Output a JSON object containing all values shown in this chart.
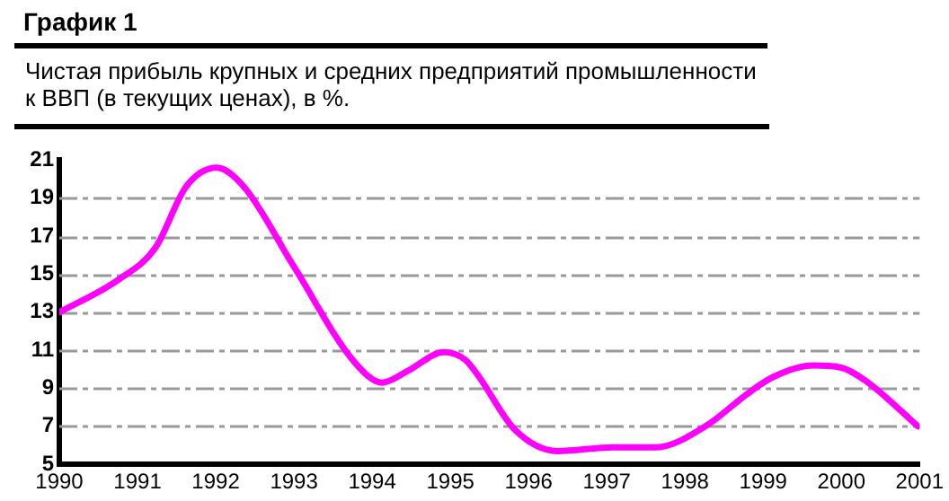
{
  "chart_data": {
    "type": "line",
    "title": "График 1",
    "subtitle": "Чистая прибыль крупных и средних предприятий промышленности к ВВП (в текущих ценах), в %.",
    "x": [
      1990,
      1990.75,
      1991.23,
      1991.62,
      1992.01,
      1992.36,
      1993.0,
      1993.77,
      1994.13,
      1994.45,
      1994.92,
      1995.19,
      1995.35,
      1995.83,
      1996.37,
      1997.08,
      1997.63,
      1998.26,
      1998.81,
      1999.13,
      1999.64,
      1999.99,
      2000.31,
      2000.98
    ],
    "series": [
      {
        "color": "#ff00ff",
        "values": [
          13.0,
          14.7,
          16.4,
          19.6,
          20.6,
          19.6,
          15.4,
          10.4,
          9.3,
          9.9,
          10.9,
          10.5,
          9.7,
          6.8,
          5.7,
          5.9,
          5.9,
          7.0,
          8.75,
          9.6,
          10.2,
          10.1,
          9.4,
          7.0
        ]
      }
    ],
    "xlim": [
      1990,
      2001
    ],
    "xticks": [
      1990,
      1991,
      1992,
      1993,
      1994,
      1995,
      1996,
      1997,
      1998,
      1999,
      2000,
      2001
    ],
    "ylim": [
      5,
      21
    ],
    "yticks": [
      5,
      7,
      9,
      11,
      13,
      15,
      17,
      19,
      21
    ],
    "grid": "y",
    "legend": false,
    "marker": "none",
    "line_style": "solid"
  }
}
